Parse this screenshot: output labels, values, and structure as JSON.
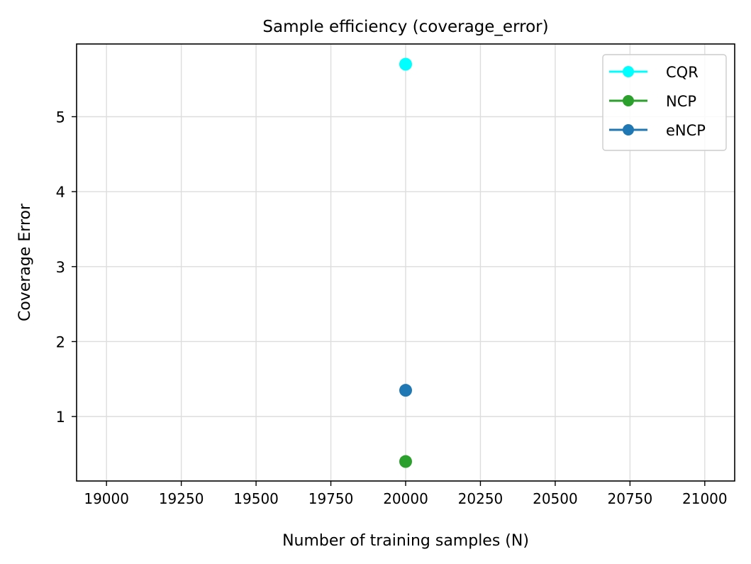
{
  "chart_data": {
    "type": "line",
    "title": "Sample efficiency (coverage_error)",
    "xlabel": "Number of training samples (N)",
    "ylabel": "Coverage Error",
    "xlim": [
      18900,
      21100
    ],
    "ylim": [
      0.14,
      5.97
    ],
    "xticks": [
      19000,
      19250,
      19500,
      19750,
      20000,
      20250,
      20500,
      20750,
      21000
    ],
    "yticks": [
      1,
      2,
      3,
      4,
      5
    ],
    "grid": true,
    "legend_position": "top-right",
    "series": [
      {
        "name": "CQR",
        "color": "#00ffff",
        "x": [
          20000
        ],
        "y": [
          5.7
        ]
      },
      {
        "name": "NCP",
        "color": "#2ca02c",
        "x": [
          20000
        ],
        "y": [
          0.4
        ]
      },
      {
        "name": "eNCP",
        "color": "#1f77b4",
        "x": [
          20000
        ],
        "y": [
          1.35
        ]
      }
    ]
  }
}
